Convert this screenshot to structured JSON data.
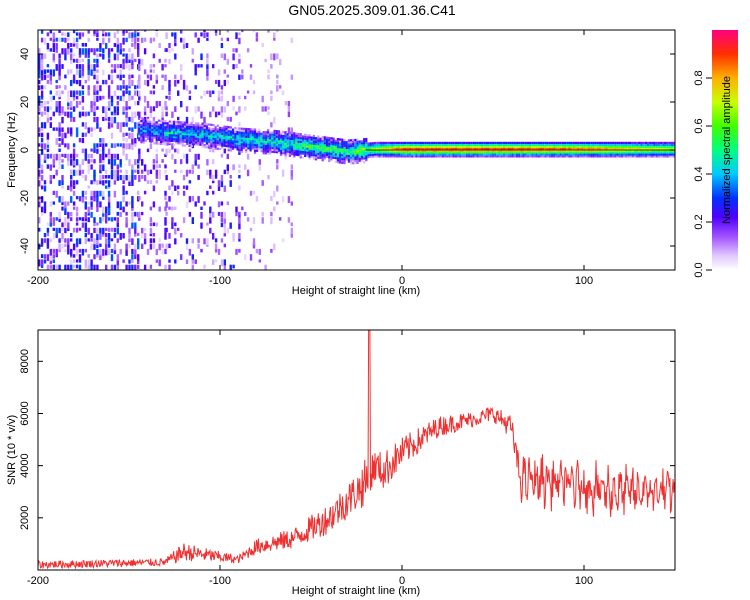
{
  "title": "GN05.2025.309.01.36.C41",
  "colors": {
    "snr_line": "#f03030",
    "axis": "#000000",
    "background": "#ffffff"
  },
  "chart_data": [
    {
      "type": "heatmap",
      "name": "spectrogram",
      "xlabel": "Height of straight line (km)",
      "ylabel": "Frequency (Hz)",
      "xlim": [
        -200,
        150
      ],
      "ylim": [
        -50,
        50
      ],
      "xticks": [
        -200,
        -100,
        0,
        100
      ],
      "xtick_labels": [
        "-200",
        "-100",
        "0",
        "100"
      ],
      "yticks": [
        -40,
        -20,
        0,
        20,
        40
      ],
      "ytick_labels": [
        "-40",
        "-20",
        "0",
        "20",
        "40"
      ],
      "colorbar": {
        "label": "Normalized spectral amplitude",
        "range": [
          0,
          1
        ],
        "ticks": [
          0.0,
          0.2,
          0.4,
          0.6,
          0.8
        ],
        "tick_labels": [
          "0.0",
          "0.2",
          "0.4",
          "0.6",
          "0.8"
        ]
      },
      "ridge": {
        "x": [
          -145,
          -130,
          -110,
          -90,
          -70,
          -50,
          -30,
          -15,
          0,
          50,
          100,
          150
        ],
        "frequency_hz": [
          8,
          7,
          6,
          4,
          3,
          1,
          -1,
          0,
          0,
          0,
          0,
          0
        ],
        "amplitude": [
          0.35,
          0.45,
          0.4,
          0.45,
          0.5,
          0.55,
          0.55,
          0.7,
          0.95,
          0.95,
          0.9,
          0.7
        ]
      },
      "noise_bands": [
        {
          "x_range": [
            -200,
            -145
          ],
          "density": 0.55,
          "max_amplitude": 0.3
        },
        {
          "x_range": [
            -145,
            -130
          ],
          "density": 0.3,
          "max_amplitude": 0.2
        },
        {
          "x_range": [
            -130,
            -90
          ],
          "density": 0.25,
          "max_amplitude": 0.25
        },
        {
          "x_range": [
            -90,
            -60
          ],
          "density": 0.12,
          "max_amplitude": 0.12
        }
      ]
    },
    {
      "type": "line",
      "name": "snr",
      "xlabel": "Height of straight line (km)",
      "ylabel": "SNR (10 * v/v)",
      "xlim": [
        -200,
        150
      ],
      "ylim": [
        0,
        9200
      ],
      "xticks": [
        -200,
        -100,
        0,
        100
      ],
      "xtick_labels": [
        "-200",
        "-100",
        "0",
        "100"
      ],
      "yticks": [
        2000,
        4000,
        6000,
        8000
      ],
      "ytick_labels": [
        "2000",
        "4000",
        "6000",
        "8000"
      ],
      "series": [
        {
          "name": "SNR",
          "envelope_x": [
            -200,
            -130,
            -120,
            -90,
            -80,
            -60,
            -40,
            -25,
            -18,
            -15,
            -10,
            0,
            20,
            40,
            50,
            60,
            65,
            80,
            100,
            120,
            150
          ],
          "envelope_y": [
            200,
            300,
            700,
            400,
            900,
            1200,
            2000,
            3000,
            3500,
            4000,
            3800,
            4500,
            5500,
            5800,
            6000,
            5500,
            3500,
            3400,
            3200,
            3000,
            3000
          ],
          "spread": [
            300,
            300,
            700,
            300,
            600,
            800,
            1200,
            1500,
            2000,
            1200,
            1500,
            1200,
            800,
            600,
            600,
            900,
            1200,
            1400,
            1400,
            1300,
            1200
          ],
          "spike": {
            "x": -18,
            "y": 9200
          }
        }
      ]
    }
  ]
}
